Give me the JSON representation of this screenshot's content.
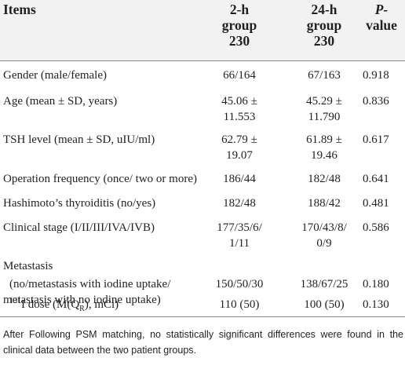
{
  "headers": {
    "items": "Items",
    "col_2h": [
      "2-h",
      "group",
      "230"
    ],
    "col_24h": [
      "24-h",
      "group",
      "230"
    ],
    "p_value": [
      "P-",
      "value"
    ]
  },
  "rows": [
    {
      "label": "Gender (male/female)",
      "v1": "66/164",
      "v2": "67/163",
      "p": "0.918"
    },
    {
      "label": "Age (mean ± SD, years)",
      "v1": [
        "45.06 ±",
        "11.553"
      ],
      "v2": [
        "45.29 ±",
        "11.790"
      ],
      "p": "0.836"
    },
    {
      "label": "TSH level (mean ± SD, uIU/ml)",
      "v1": [
        "62.79 ±",
        "19.07"
      ],
      "v2": [
        "61.89 ±",
        "19.46"
      ],
      "p": "0.617"
    },
    {
      "label": "Operation frequency (once/ two or more)",
      "v1": "186/44",
      "v2": "182/48",
      "p": "0.641"
    },
    {
      "label": "Hashimoto’s thyroiditis (no/yes)",
      "v1": "182/48",
      "v2": "188/42",
      "p": "0.481"
    },
    {
      "label": "Clinical stage (I/II/III/IVA/IVB)",
      "v1": [
        "177/35/6/",
        "1/11"
      ],
      "v2": [
        "170/43/8/",
        "0/9"
      ],
      "p": "0.586"
    },
    {
      "label": "Metastasis"
    },
    {
      "label": [
        "(no/metastasis with iodine uptake/",
        "metastasis with no iodine uptake)"
      ],
      "v1": "150/50/30",
      "v2": "138/67/25",
      "p": "0.180"
    },
    {
      "label": {
        "sup": "131",
        "main": "I dose (M(Q",
        "sub": "R",
        "end": "), mCi)"
      },
      "v1": "110 (50)",
      "v2": "100 (50)",
      "p": "0.130"
    }
  ],
  "footnote": "After Following PSM matching, no statistically significant differences were found in the clinical data between the two patient groups."
}
